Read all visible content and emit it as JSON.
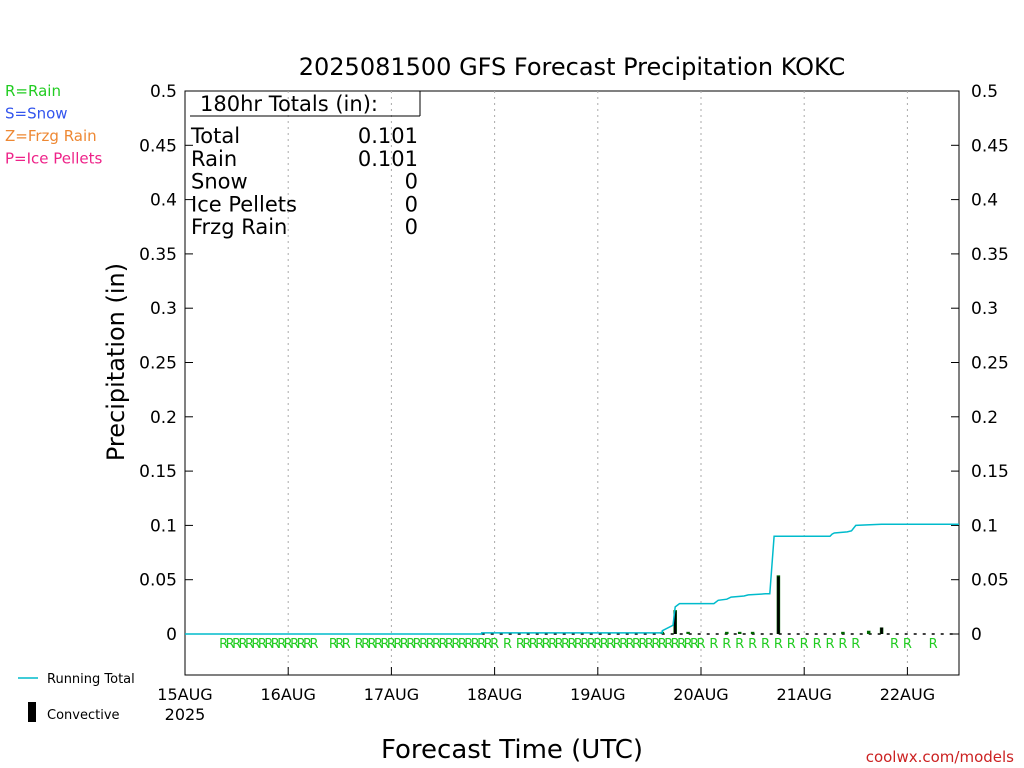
{
  "chart_data": {
    "type": "bar",
    "title": "2025081500 GFS Forecast Precipitation KOKC",
    "ylabel": "Precipitation (in)",
    "xlabel": "Forecast Time (UTC)",
    "ylim": [
      0,
      0.5
    ],
    "xlim_hours": [
      0,
      180
    ],
    "yticks": [
      0,
      0.05,
      0.1,
      0.15,
      0.2,
      0.25,
      0.3,
      0.35,
      0.4,
      0.45,
      0.5
    ],
    "yticklabels": [
      "0",
      "0.05",
      "0.1",
      "0.15",
      "0.2",
      "0.25",
      "0.3",
      "0.35",
      "0.4",
      "0.45",
      "0.5"
    ],
    "xticks": [
      {
        "hour": 0,
        "label": "15AUG",
        "sublabel": "2025"
      },
      {
        "hour": 24,
        "label": "16AUG"
      },
      {
        "hour": 48,
        "label": "17AUG"
      },
      {
        "hour": 72,
        "label": "18AUG"
      },
      {
        "hour": 96,
        "label": "19AUG"
      },
      {
        "hour": 120,
        "label": "20AUG"
      },
      {
        "hour": 144,
        "label": "21AUG"
      },
      {
        "hour": 168,
        "label": "22AUG"
      }
    ],
    "grid": "vertical dotted",
    "legend_left": [
      {
        "text": "R=Rain",
        "color": "#22cc22"
      },
      {
        "text": "S=Snow",
        "color": "#3355ee"
      },
      {
        "text": "Z=Frzg Rain",
        "color": "#ee8833"
      },
      {
        "text": "P=Ice Pellets",
        "color": "#ee2288"
      }
    ],
    "legend_bottom": [
      {
        "text": "Running Total",
        "color": "#00bbcc",
        "kind": "line"
      },
      {
        "text": "Convective",
        "color": "#000000",
        "kind": "bar"
      }
    ],
    "totals": {
      "heading": "180hr Totals (in):",
      "rows": [
        {
          "label": "Total",
          "value": "0.101"
        },
        {
          "label": "Rain",
          "value": "0.101"
        },
        {
          "label": "Snow",
          "value": "0"
        },
        {
          "label": "Ice Pellets",
          "value": "0"
        },
        {
          "label": "Frzg Rain",
          "value": "0"
        }
      ]
    },
    "series": [
      {
        "name": "Precipitation",
        "kind": "bars",
        "color": "#006600",
        "points": [
          [
            111,
            0.002
          ],
          [
            114,
            0.022
          ],
          [
            117,
            0.002
          ],
          [
            126,
            0.002
          ],
          [
            129,
            0.002
          ],
          [
            132,
            0.002
          ],
          [
            138,
            0.054
          ],
          [
            153,
            0.002
          ],
          [
            159,
            0.003
          ],
          [
            162,
            0.006
          ]
        ]
      },
      {
        "name": "Convective",
        "kind": "bars",
        "color": "#000000",
        "points": [
          [
            114,
            0.021
          ],
          [
            138,
            0.053
          ],
          [
            162,
            0.006
          ]
        ]
      },
      {
        "name": "Running Total",
        "kind": "line",
        "color": "#00bbcc",
        "points": [
          [
            0,
            0
          ],
          [
            69,
            0
          ],
          [
            69,
            0.001
          ],
          [
            111,
            0.001
          ],
          [
            111,
            0.003
          ],
          [
            113.5,
            0.008
          ],
          [
            114,
            0.025
          ],
          [
            115,
            0.028
          ],
          [
            123,
            0.028
          ],
          [
            124,
            0.031
          ],
          [
            126,
            0.032
          ],
          [
            127,
            0.034
          ],
          [
            130,
            0.035
          ],
          [
            131,
            0.036
          ],
          [
            135,
            0.037
          ],
          [
            136,
            0.037
          ],
          [
            137,
            0.09
          ],
          [
            150,
            0.09
          ],
          [
            150.5,
            0.092
          ],
          [
            151,
            0.093
          ],
          [
            154,
            0.094
          ],
          [
            155,
            0.095
          ],
          [
            156,
            0.1
          ],
          [
            162,
            0.101
          ],
          [
            180,
            0.101
          ]
        ]
      }
    ],
    "ptype_markers": {
      "letter": "R",
      "color": "#22cc22",
      "hours": [
        9,
        10.5,
        12,
        13.5,
        15,
        16.5,
        18,
        19.5,
        21,
        22.5,
        24,
        25.5,
        27,
        28.5,
        30,
        34.5,
        36,
        37.5,
        40.5,
        42,
        43.5,
        45,
        46.5,
        48,
        49.5,
        51,
        52.5,
        54,
        55.5,
        57,
        58.5,
        60,
        61.5,
        63,
        64.5,
        66,
        67.5,
        69,
        70.5,
        72,
        75,
        78,
        79.5,
        81,
        82.5,
        84,
        85.5,
        87,
        88.5,
        90,
        91.5,
        93,
        94.5,
        96,
        97.5,
        99,
        100.5,
        102,
        103.5,
        105,
        106.5,
        108,
        109.5,
        111,
        112.5,
        114,
        115.5,
        117,
        118.5,
        120,
        123,
        126,
        129,
        132,
        135,
        138,
        141,
        144,
        147,
        150,
        153,
        156,
        165,
        168,
        174
      ]
    },
    "watermark": "coolwx.com/models"
  }
}
